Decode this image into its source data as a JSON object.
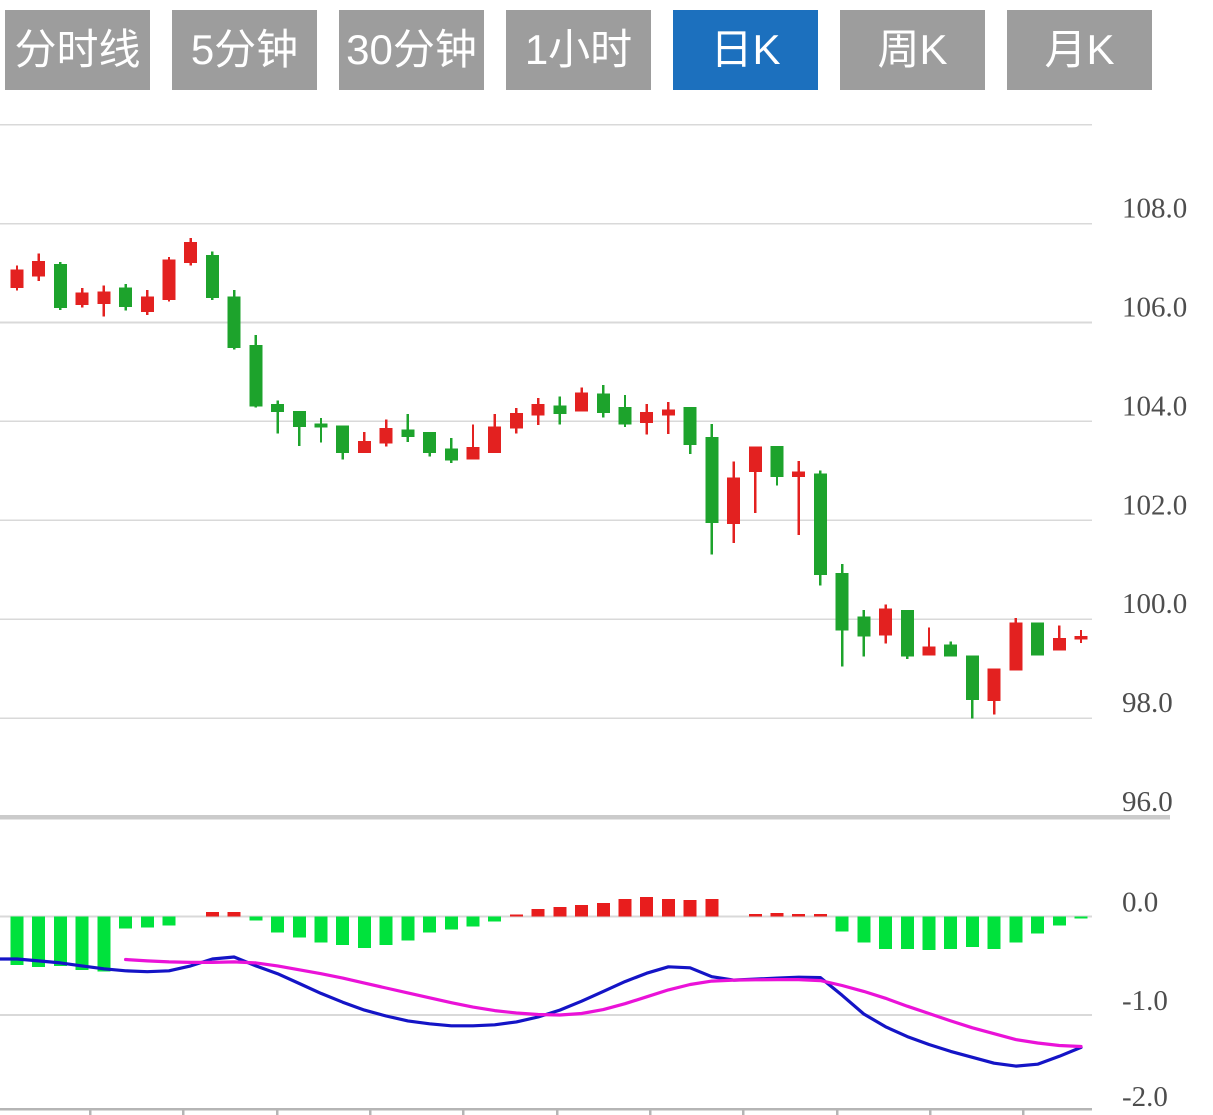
{
  "tabs": {
    "items": [
      {
        "label": "分时线",
        "name": "tab-time-share-line",
        "active": false
      },
      {
        "label": "5分钟",
        "name": "tab-5-minute",
        "active": false
      },
      {
        "label": "30分钟",
        "name": "tab-30-minute",
        "active": false
      },
      {
        "label": "1小时",
        "name": "tab-1-hour",
        "active": false
      },
      {
        "label": "日K",
        "name": "tab-daily-k",
        "active": true
      },
      {
        "label": "周K",
        "name": "tab-weekly-k",
        "active": false
      },
      {
        "label": "月K",
        "name": "tab-monthly-k",
        "active": false
      }
    ],
    "colors": {
      "bg": "#9d9d9d",
      "active_bg": "#1c70be",
      "text": "#ffffff"
    }
  },
  "chart_data": {
    "type": "candlestick",
    "title": "",
    "subtitle": "daily K-line with MACD sub-chart",
    "convention": "red body = close >= open (up), green body = close < open (down)",
    "grid": true,
    "legend_position": "none",
    "price_pane": {
      "ylabel": "",
      "ylim": [
        95.5,
        110.2
      ],
      "axis_labels": [
        {
          "value": 108,
          "text": "108.0"
        },
        {
          "value": 106,
          "text": "106.0"
        },
        {
          "value": 104,
          "text": "104.0"
        },
        {
          "value": 102,
          "text": "102.0"
        },
        {
          "value": 100,
          "text": "100.0"
        },
        {
          "value": 98,
          "text": "98.0"
        },
        {
          "value": 96,
          "text": "96.0"
        }
      ],
      "unlabeled_gridlines": [
        110
      ],
      "heavy_gridline_value": 96,
      "candles_ohlc": [
        [
          106.7,
          107.15,
          106.65,
          107.07
        ],
        [
          106.93,
          107.4,
          106.84,
          107.24
        ],
        [
          107.18,
          107.22,
          106.25,
          106.29
        ],
        [
          106.35,
          106.7,
          106.3,
          106.61
        ],
        [
          106.37,
          106.75,
          106.12,
          106.63
        ],
        [
          106.71,
          106.78,
          106.24,
          106.31
        ],
        [
          106.21,
          106.66,
          106.15,
          106.53
        ],
        [
          106.46,
          107.32,
          106.42,
          107.27
        ],
        [
          107.2,
          107.71,
          107.15,
          107.63
        ],
        [
          107.36,
          107.44,
          106.46,
          106.5
        ],
        [
          106.53,
          106.66,
          105.45,
          105.48
        ],
        [
          105.55,
          105.75,
          104.28,
          104.3
        ],
        [
          104.35,
          104.42,
          103.76,
          104.19
        ],
        [
          104.21,
          104.21,
          103.5,
          103.89
        ],
        [
          103.96,
          104.07,
          103.57,
          103.88
        ],
        [
          103.92,
          103.92,
          103.23,
          103.36
        ],
        [
          103.36,
          103.79,
          103.36,
          103.6
        ],
        [
          103.55,
          104.04,
          103.49,
          103.87
        ],
        [
          103.84,
          104.15,
          103.58,
          103.68
        ],
        [
          103.79,
          103.79,
          103.29,
          103.36
        ],
        [
          103.45,
          103.66,
          103.16,
          103.21
        ],
        [
          103.23,
          103.94,
          103.23,
          103.48
        ],
        [
          103.36,
          104.15,
          103.36,
          103.9
        ],
        [
          103.86,
          104.27,
          103.76,
          104.17
        ],
        [
          104.12,
          104.47,
          103.93,
          104.35
        ],
        [
          104.32,
          104.5,
          103.94,
          104.15
        ],
        [
          104.2,
          104.69,
          104.2,
          104.58
        ],
        [
          104.56,
          104.74,
          104.08,
          104.17
        ],
        [
          104.29,
          104.53,
          103.89,
          103.94
        ],
        [
          103.97,
          104.35,
          103.74,
          104.19
        ],
        [
          104.12,
          104.39,
          103.75,
          104.24
        ],
        [
          104.29,
          104.29,
          103.34,
          103.52
        ],
        [
          103.68,
          103.95,
          101.31,
          101.95
        ],
        [
          101.93,
          103.19,
          101.54,
          102.87
        ],
        [
          102.98,
          103.49,
          102.15,
          103.49
        ],
        [
          103.5,
          103.5,
          102.7,
          102.88
        ],
        [
          102.88,
          103.2,
          101.7,
          102.99
        ],
        [
          102.95,
          103.01,
          100.68,
          100.89
        ],
        [
          100.93,
          101.12,
          99.04,
          99.77
        ],
        [
          100.05,
          100.19,
          99.25,
          99.65
        ],
        [
          99.67,
          100.3,
          99.51,
          100.22
        ],
        [
          100.19,
          100.19,
          99.2,
          99.25
        ],
        [
          99.27,
          99.83,
          99.27,
          99.45
        ],
        [
          99.49,
          99.55,
          99.25,
          99.25
        ],
        [
          99.27,
          99.27,
          97.99,
          98.37
        ],
        [
          98.35,
          99.0,
          98.07,
          99.0
        ],
        [
          98.96,
          100.02,
          98.96,
          99.93
        ],
        [
          99.93,
          99.93,
          99.27,
          99.27
        ],
        [
          99.37,
          99.87,
          99.37,
          99.62
        ],
        [
          99.59,
          99.78,
          99.52,
          99.66
        ]
      ]
    },
    "macd_pane": {
      "ylim": [
        -2.1,
        0.35
      ],
      "axis_labels": [
        {
          "value": 0,
          "text": "0.0"
        },
        {
          "value": -1,
          "text": "-1.0"
        },
        {
          "value": -2,
          "text": "-2.0"
        }
      ],
      "histogram": [
        -0.49,
        -0.51,
        -0.5,
        -0.54,
        -0.56,
        -0.12,
        -0.11,
        -0.09,
        0,
        0.05,
        0.05,
        -0.04,
        -0.16,
        -0.21,
        -0.26,
        -0.29,
        -0.32,
        -0.29,
        -0.24,
        -0.16,
        -0.13,
        -0.1,
        -0.05,
        0.02,
        0.08,
        0.1,
        0.12,
        0.14,
        0.18,
        0.2,
        0.18,
        0.17,
        0.18,
        0,
        0.03,
        0.04,
        0.03,
        0.03,
        -0.15,
        -0.26,
        -0.33,
        -0.33,
        -0.34,
        -0.33,
        -0.31,
        -0.33,
        -0.26,
        -0.17,
        -0.09,
        -0.02
      ],
      "dif": [
        -0.43,
        -0.45,
        -0.47,
        -0.5,
        -0.53,
        -0.55,
        -0.56,
        -0.55,
        -0.5,
        -0.43,
        -0.41,
        -0.5,
        -0.58,
        -0.68,
        -0.78,
        -0.87,
        -0.95,
        -1.01,
        -1.06,
        -1.09,
        -1.11,
        -1.11,
        -1.1,
        -1.07,
        -1.02,
        -0.95,
        -0.86,
        -0.76,
        -0.66,
        -0.575,
        -0.51,
        -0.52,
        -0.61,
        -0.645,
        -0.635,
        -0.625,
        -0.615,
        -0.62,
        -0.8,
        -0.99,
        -1.12,
        -1.22,
        -1.3,
        -1.37,
        -1.43,
        -1.49,
        -1.52,
        -1.5,
        -1.42,
        -1.33
      ],
      "dea": [
        null,
        null,
        null,
        null,
        null,
        -0.435,
        -0.45,
        -0.46,
        -0.465,
        -0.465,
        -0.46,
        -0.47,
        -0.5,
        -0.54,
        -0.58,
        -0.625,
        -0.675,
        -0.725,
        -0.775,
        -0.825,
        -0.875,
        -0.92,
        -0.955,
        -0.98,
        -0.995,
        -1.0,
        -0.985,
        -0.945,
        -0.885,
        -0.815,
        -0.745,
        -0.69,
        -0.655,
        -0.645,
        -0.642,
        -0.64,
        -0.64,
        -0.65,
        -0.7,
        -0.76,
        -0.83,
        -0.91,
        -0.985,
        -1.06,
        -1.13,
        -1.19,
        -1.25,
        -1.285,
        -1.31,
        -1.32
      ]
    },
    "colors": {
      "candle_up": "#e32120",
      "candle_down": "#1da32c",
      "hist_up": "#e81d1d",
      "hist_down": "#00e23c",
      "dif_line": "#1414c6",
      "dea_line": "#ea12d8",
      "grid": "#d9d9d9",
      "grid_heavy": "#cbcbcb",
      "axis_line": "#b5b5b5",
      "axis_text": "#4e4e4e"
    }
  }
}
